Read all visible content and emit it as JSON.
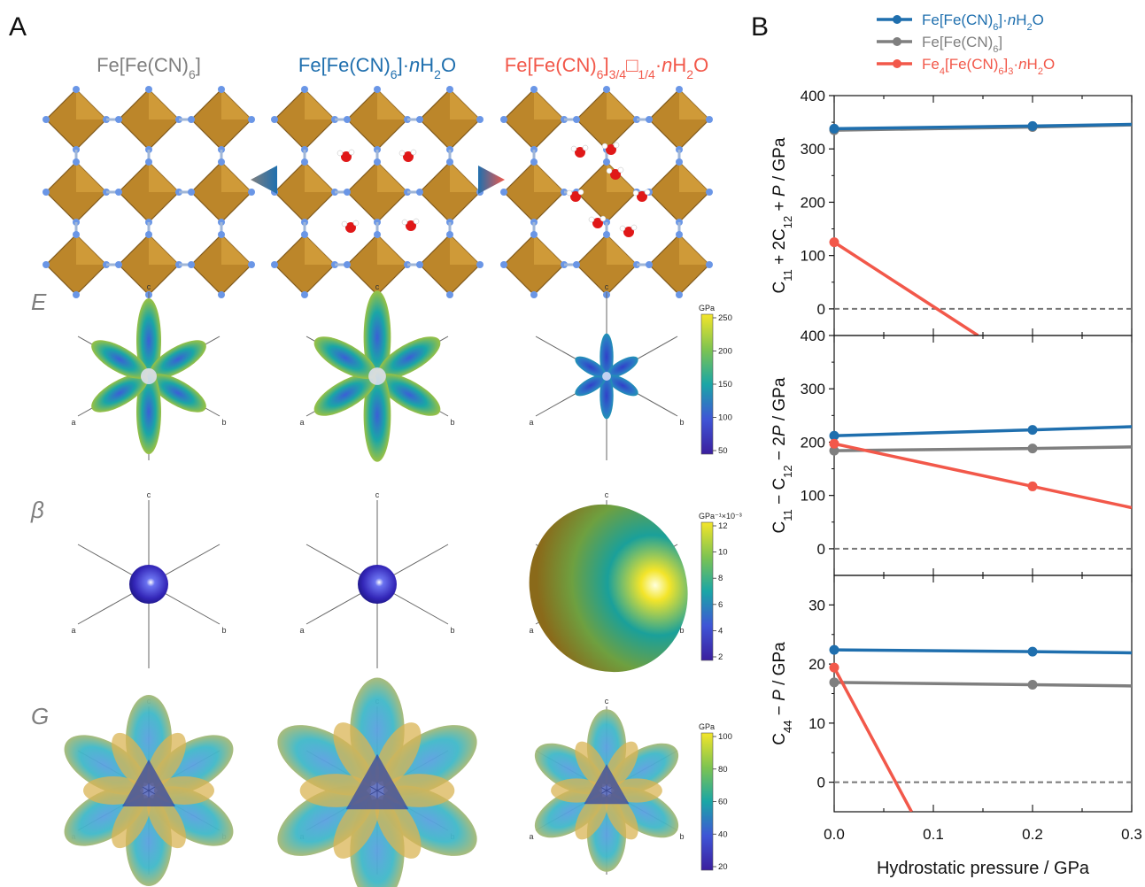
{
  "panel_a": {
    "label": "A",
    "structures": [
      {
        "name": "Fe[Fe(CN)<sub>6</sub>]",
        "color": "#7f7f7f"
      },
      {
        "name": "Fe[Fe(CN)<sub>6</sub>]·<i>n</i>H<sub>2</sub>O",
        "color": "#1f6fae"
      },
      {
        "name": "Fe[Fe(CN)<sub>6</sub>]<sub>3/4</sub>□<sub>1/4</sub>·<i>n</i>H<sub>2</sub>O",
        "color": "#f2584a"
      }
    ],
    "property_rows": [
      {
        "symbol": "E",
        "colorbar": {
          "unit": "GPa",
          "ticks": [
            "250",
            "200",
            "150",
            "100",
            "50"
          ]
        }
      },
      {
        "symbol": "β",
        "colorbar": {
          "unit": "GPa⁻¹×10⁻³",
          "ticks": [
            "12",
            "10",
            "8",
            "6",
            "4",
            "2"
          ]
        }
      },
      {
        "symbol": "G",
        "colorbar": {
          "unit": "GPa",
          "ticks": [
            "100",
            "80",
            "60",
            "40",
            "20"
          ]
        }
      }
    ],
    "axis_labels": {
      "a": "a",
      "b": "b",
      "c": "c"
    }
  },
  "chart_data": {
    "type": "line",
    "panel_label": "B",
    "xlabel": "Hydrostatic pressure / GPa",
    "x_ticks": [
      "0.0",
      "0.1",
      "0.2",
      "0.3"
    ],
    "xlim": [
      0,
      0.3
    ],
    "legend": [
      {
        "label": "Fe[Fe(CN)<sub>6</sub>]·<i>n</i>H<sub>2</sub>O",
        "color": "#1f6fae"
      },
      {
        "label": "Fe[Fe(CN)<sub>6</sub>]",
        "color": "#7f7f7f"
      },
      {
        "label": "Fe<sub>4</sub>[Fe(CN)<sub>6</sub>]<sub>3</sub>·<i>n</i>H<sub>2</sub>O",
        "color": "#f2584a"
      }
    ],
    "subplots": [
      {
        "ylabel": "C<tspan baseline-shift='sub' font-size='13'>11</tspan> + 2C<tspan baseline-shift='sub' font-size='13'>12</tspan> + <tspan font-style='italic'>P</tspan> / GPa",
        "ylim": [
          -50,
          400
        ],
        "y_ticks": [
          0,
          100,
          200,
          300,
          400
        ],
        "series": [
          {
            "color": "#7f7f7f",
            "x": [
              0,
              0.2,
              0.3
            ],
            "y": [
              335,
              341,
              345
            ],
            "markers": [
              0,
              0.2
            ]
          },
          {
            "color": "#1f6fae",
            "x": [
              0,
              0.2,
              0.3
            ],
            "y": [
              338,
              343,
              346
            ],
            "markers": [
              0,
              0.2
            ]
          },
          {
            "color": "#f2584a",
            "x": [
              0,
              0.145
            ],
            "y": [
              125,
              -50
            ],
            "markers": [
              0
            ]
          }
        ]
      },
      {
        "ylabel": "C<tspan baseline-shift='sub' font-size='13'>11</tspan> − C<tspan baseline-shift='sub' font-size='13'>12</tspan> − 2<tspan font-style='italic'>P</tspan> / GPa",
        "ylim": [
          -50,
          400
        ],
        "y_ticks": [
          0,
          100,
          200,
          300,
          400
        ],
        "series": [
          {
            "color": "#7f7f7f",
            "x": [
              0,
              0.2,
              0.3
            ],
            "y": [
              184,
              188,
              191
            ],
            "markers": [
              0,
              0.2
            ]
          },
          {
            "color": "#1f6fae",
            "x": [
              0,
              0.2,
              0.3
            ],
            "y": [
              212,
              223,
              229
            ],
            "markers": [
              0,
              0.2
            ]
          },
          {
            "color": "#f2584a",
            "x": [
              0,
              0.2,
              0.3
            ],
            "y": [
              197,
              117,
              77
            ],
            "markers": [
              0,
              0.2
            ]
          }
        ]
      },
      {
        "ylabel": "C<tspan baseline-shift='sub' font-size='13'>44</tspan> − <tspan font-style='italic'>P</tspan> / GPa",
        "ylim": [
          -5,
          35
        ],
        "y_ticks": [
          0,
          10,
          20,
          30
        ],
        "series": [
          {
            "color": "#7f7f7f",
            "x": [
              0,
              0.2,
              0.3
            ],
            "y": [
              16.9,
              16.5,
              16.3
            ],
            "markers": [
              0,
              0.2
            ]
          },
          {
            "color": "#1f6fae",
            "x": [
              0,
              0.2,
              0.3
            ],
            "y": [
              22.4,
              22.1,
              21.9
            ],
            "markers": [
              0,
              0.2
            ]
          },
          {
            "color": "#f2584a",
            "x": [
              0,
              0.078
            ],
            "y": [
              19.4,
              -5
            ],
            "markers": [
              0
            ]
          }
        ]
      }
    ]
  }
}
